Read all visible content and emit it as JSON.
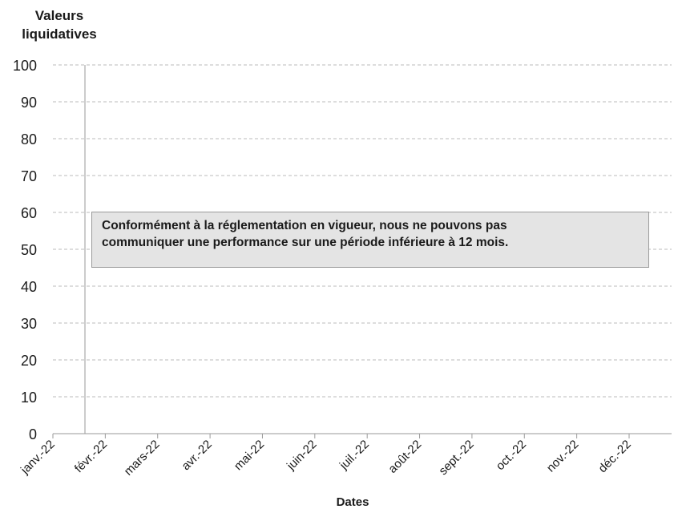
{
  "chart_data": {
    "type": "line",
    "ylabel": "Valeurs liquidatives",
    "ylabel_lines": [
      "Valeurs",
      "liquidatives"
    ],
    "xlabel": "Dates",
    "ylim": [
      0,
      100
    ],
    "yticks": [
      0,
      10,
      20,
      30,
      40,
      50,
      60,
      70,
      80,
      90,
      100
    ],
    "categories": [
      "janv.-22",
      "févr.-22",
      "mars-22",
      "avr.-22",
      "mai-22",
      "juin-22",
      "juil.-22",
      "août-22",
      "sept.-22",
      "oct.-22",
      "nov.-22",
      "déc.-22"
    ],
    "series": [],
    "grid": "horizontal dashed",
    "annotation": {
      "lines": [
        "Conformément à la réglementation en vigueur, nous ne pouvons pas",
        "communiquer une performance sur une période inférieure à 12 mois."
      ]
    }
  },
  "colors": {
    "axis": "#9a9a9a",
    "grid": "#bbbbbb",
    "notice_bg": "#e4e4e4",
    "text": "#1a1a1a"
  }
}
